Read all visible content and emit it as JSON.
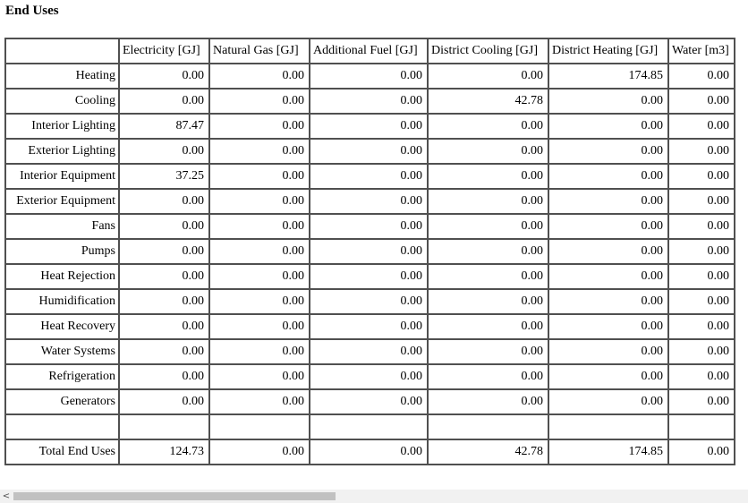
{
  "report": {
    "title": "End Uses",
    "columns": [
      "Electricity [GJ]",
      "Natural Gas [GJ]",
      "Additional Fuel [GJ]",
      "District Cooling [GJ]",
      "District Heating [GJ]",
      "Water [m3]"
    ],
    "rows": [
      {
        "label": "Heating",
        "values": [
          "0.00",
          "0.00",
          "0.00",
          "0.00",
          "174.85",
          "0.00"
        ]
      },
      {
        "label": "Cooling",
        "values": [
          "0.00",
          "0.00",
          "0.00",
          "42.78",
          "0.00",
          "0.00"
        ]
      },
      {
        "label": "Interior Lighting",
        "values": [
          "87.47",
          "0.00",
          "0.00",
          "0.00",
          "0.00",
          "0.00"
        ]
      },
      {
        "label": "Exterior Lighting",
        "values": [
          "0.00",
          "0.00",
          "0.00",
          "0.00",
          "0.00",
          "0.00"
        ]
      },
      {
        "label": "Interior Equipment",
        "values": [
          "37.25",
          "0.00",
          "0.00",
          "0.00",
          "0.00",
          "0.00"
        ]
      },
      {
        "label": "Exterior Equipment",
        "values": [
          "0.00",
          "0.00",
          "0.00",
          "0.00",
          "0.00",
          "0.00"
        ]
      },
      {
        "label": "Fans",
        "values": [
          "0.00",
          "0.00",
          "0.00",
          "0.00",
          "0.00",
          "0.00"
        ]
      },
      {
        "label": "Pumps",
        "values": [
          "0.00",
          "0.00",
          "0.00",
          "0.00",
          "0.00",
          "0.00"
        ]
      },
      {
        "label": "Heat Rejection",
        "values": [
          "0.00",
          "0.00",
          "0.00",
          "0.00",
          "0.00",
          "0.00"
        ]
      },
      {
        "label": "Humidification",
        "values": [
          "0.00",
          "0.00",
          "0.00",
          "0.00",
          "0.00",
          "0.00"
        ]
      },
      {
        "label": "Heat Recovery",
        "values": [
          "0.00",
          "0.00",
          "0.00",
          "0.00",
          "0.00",
          "0.00"
        ]
      },
      {
        "label": "Water Systems",
        "values": [
          "0.00",
          "0.00",
          "0.00",
          "0.00",
          "0.00",
          "0.00"
        ]
      },
      {
        "label": "Refrigeration",
        "values": [
          "0.00",
          "0.00",
          "0.00",
          "0.00",
          "0.00",
          "0.00"
        ]
      },
      {
        "label": "Generators",
        "values": [
          "0.00",
          "0.00",
          "0.00",
          "0.00",
          "0.00",
          "0.00"
        ]
      }
    ],
    "total": {
      "label": "Total End Uses",
      "values": [
        "124.73",
        "0.00",
        "0.00",
        "42.78",
        "174.85",
        "0.00"
      ]
    }
  },
  "scrollbar": {
    "left_arrow": "<"
  }
}
